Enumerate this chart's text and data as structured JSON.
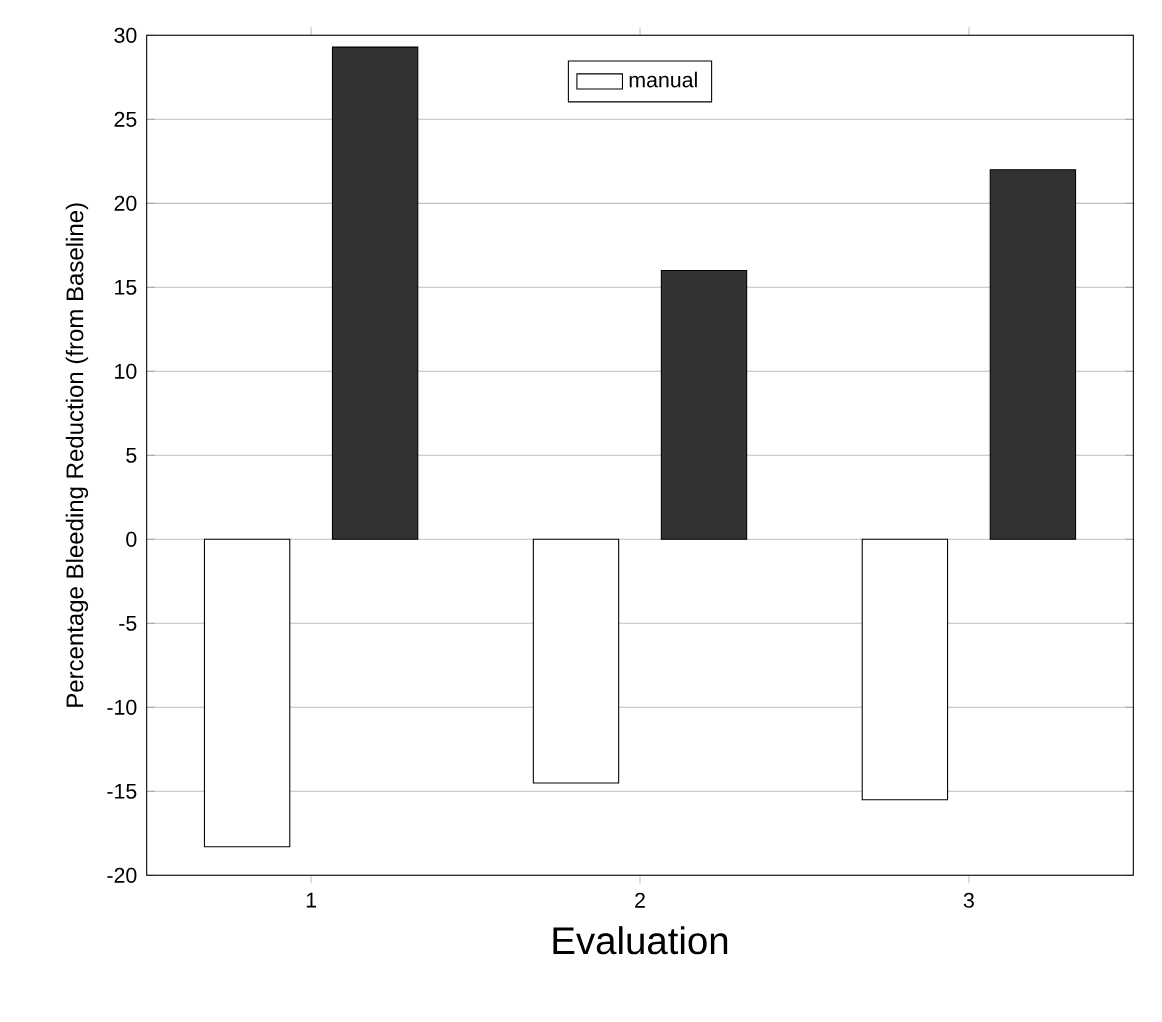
{
  "chart_data": {
    "type": "bar",
    "xlabel": "Evaluation",
    "ylabel": "Percentage Bleeding Reduction (from Baseline)",
    "categories": [
      "1",
      "2",
      "3"
    ],
    "series": [
      {
        "name": "manual",
        "color": "#ffffff",
        "values": [
          -18.3,
          -14.5,
          -15.5
        ]
      },
      {
        "color": "#333333",
        "values": [
          29.3,
          16.0,
          22.0
        ]
      }
    ],
    "ylim": [
      -20,
      30
    ],
    "yticks": [
      -20,
      -15,
      -10,
      -5,
      0,
      5,
      10,
      15,
      20,
      25,
      30
    ],
    "grid": "y",
    "legend": "top"
  }
}
